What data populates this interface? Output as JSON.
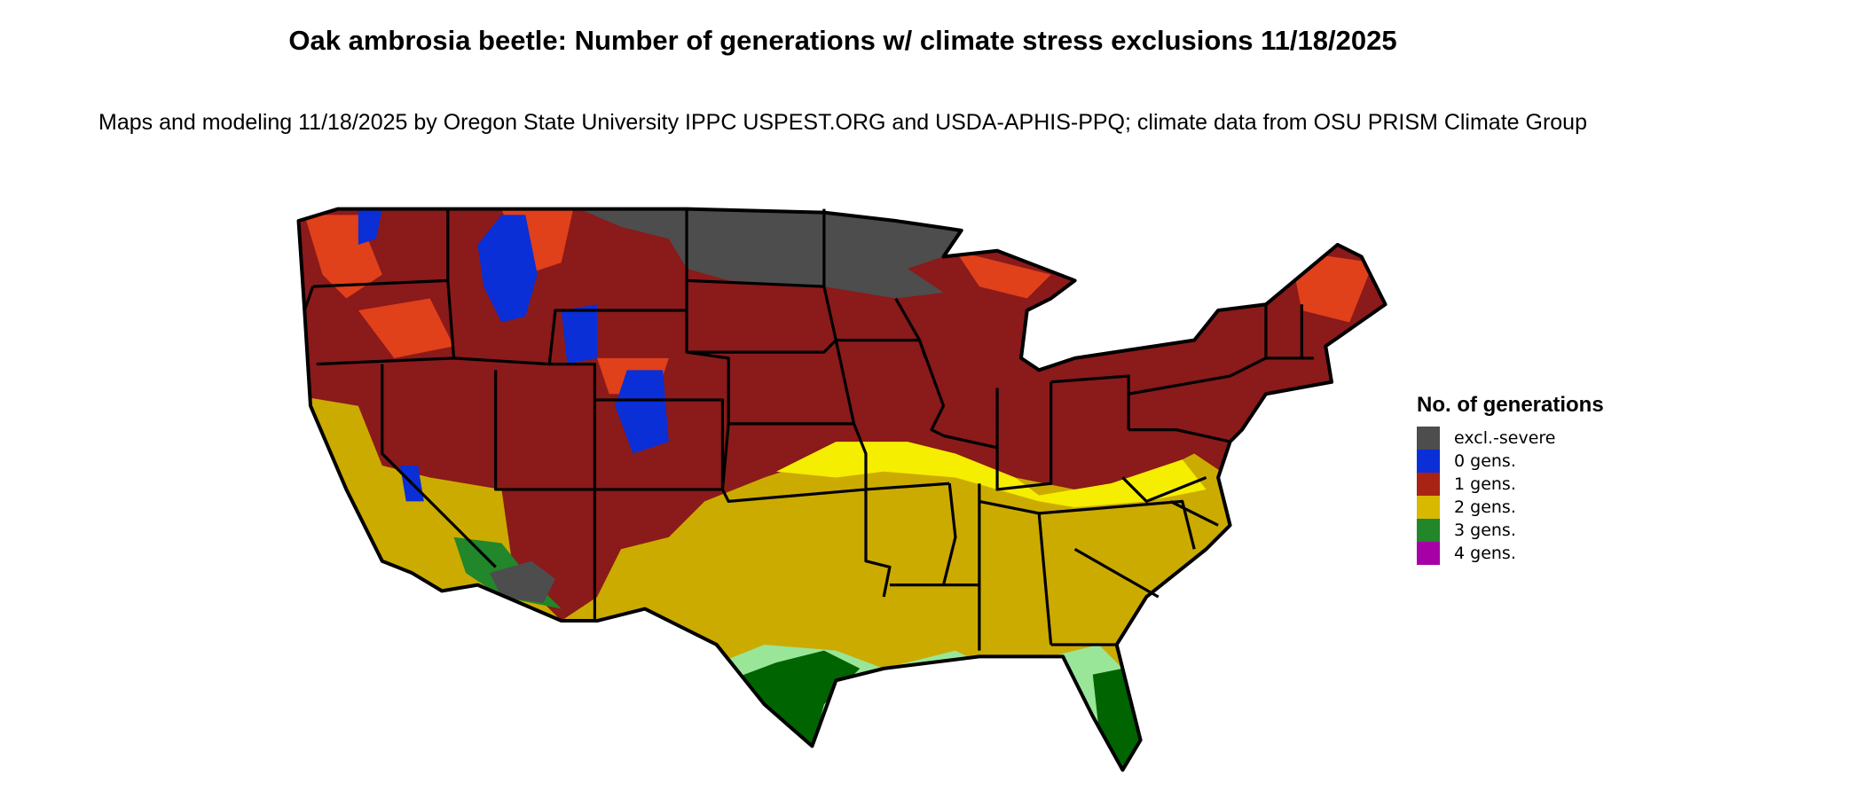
{
  "title": "Oak ambrosia beetle: Number of generations w/ climate stress exclusions 11/18/2025",
  "subtitle": "Maps and modeling 11/18/2025 by Oregon State University IPPC USPEST.ORG and USDA-APHIS-PPQ; climate data from OSU PRISM Climate Group",
  "legend": {
    "title": "No. of generations",
    "items": [
      {
        "label": "excl.-severe",
        "color": "#4d4d4d"
      },
      {
        "label": "0 gens.",
        "color": "#0a2fd6"
      },
      {
        "label": "1 gens.",
        "color": "#a82314"
      },
      {
        "label": "2 gens.",
        "color": "#d9b800"
      },
      {
        "label": "3 gens.",
        "color": "#22862a"
      },
      {
        "label": "4 gens.",
        "color": "#a600a6"
      }
    ]
  },
  "map_colors": {
    "one_gen": "#8b1a1a",
    "one_gen_light": "#e0401a",
    "two_gen": "#ccab00",
    "two_gen_bright": "#f5ee00",
    "three_gen": "#006400",
    "three_gen_light": "#99e699",
    "excl": "#4d4d4d",
    "zero_gen": "#0a2fd6"
  }
}
